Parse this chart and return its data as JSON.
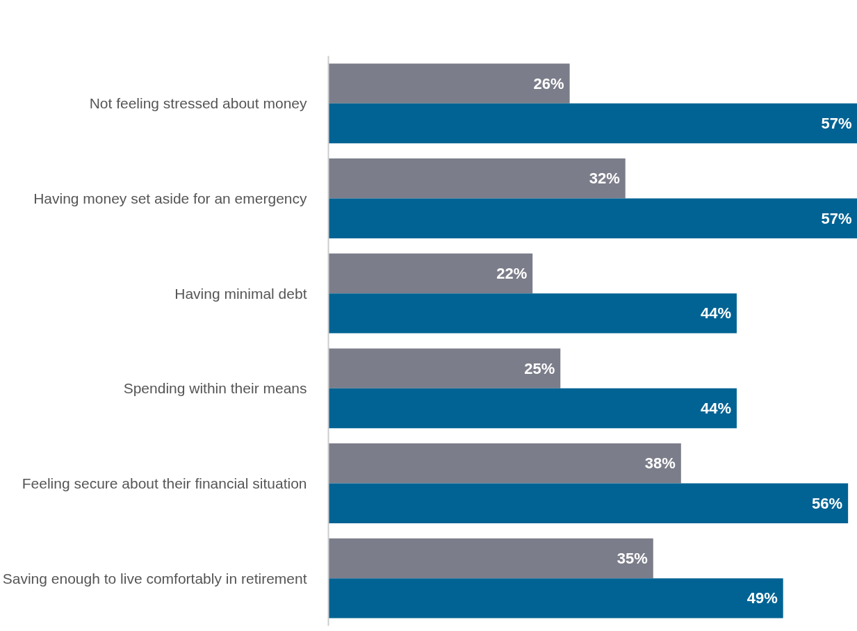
{
  "chart_data": {
    "type": "bar",
    "orientation": "horizontal",
    "categories": [
      "Not feeling stressed about money",
      "Having money set aside for an emergency",
      "Having minimal debt",
      "Spending within their means",
      "Feeling secure about their financial situation",
      "Saving enough to live comfortably in retirement"
    ],
    "series": [
      {
        "color": "#7b7d8a",
        "values": [
          26,
          32,
          22,
          25,
          38,
          35
        ],
        "value_labels": [
          "26%",
          "32%",
          "22%",
          "25%",
          "38%",
          "35%"
        ]
      },
      {
        "color": "#006394",
        "values": [
          57,
          57,
          44,
          44,
          56,
          49
        ],
        "value_labels": [
          "57%",
          "57%",
          "44%",
          "44%",
          "56%",
          "49%"
        ]
      }
    ],
    "grid": false,
    "tick_labels": "y"
  }
}
